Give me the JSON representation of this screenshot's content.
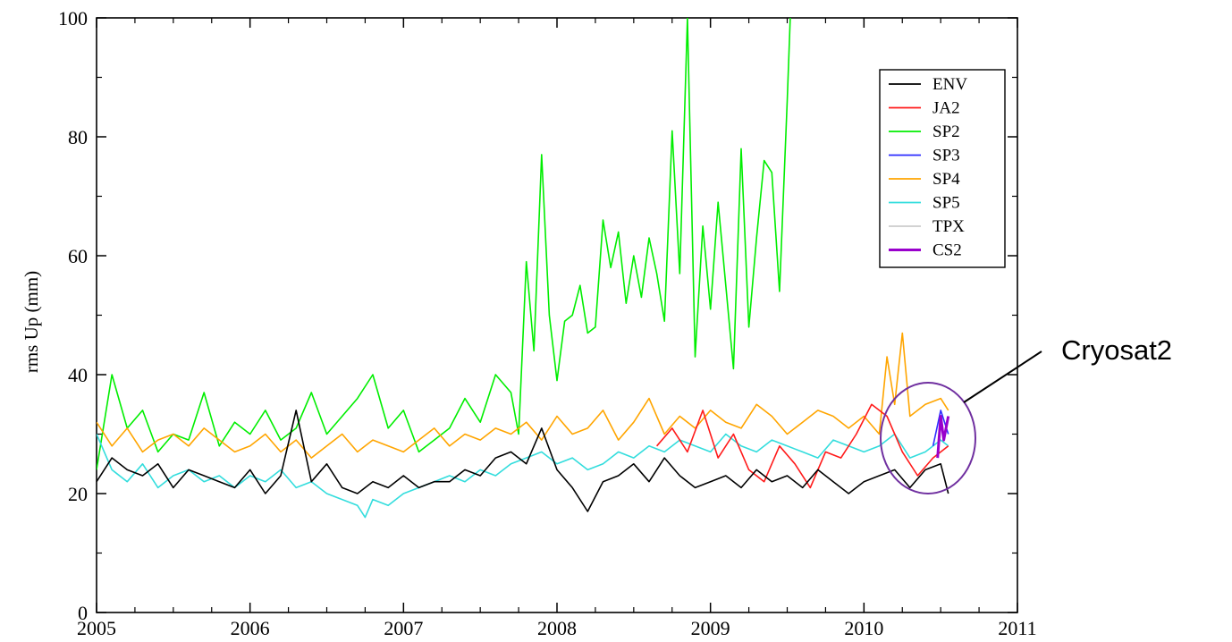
{
  "chart_data": {
    "type": "line",
    "title": "",
    "xlabel": "",
    "ylabel": "rms Up (mm)",
    "xlim": [
      2005,
      2011
    ],
    "ylim": [
      0,
      100
    ],
    "x_ticks": [
      "2005",
      "2006",
      "2007",
      "2008",
      "2009",
      "2010",
      "2011"
    ],
    "y_ticks": [
      "0",
      "20",
      "40",
      "60",
      "80",
      "100"
    ],
    "grid": false,
    "legend_position": "top-right",
    "annotation": {
      "text": "Cryosat2",
      "target": "CS2 values around mid-2010"
    },
    "series": [
      {
        "name": "ENV",
        "color": "#000000",
        "x": [
          2005.0,
          2005.1,
          2005.2,
          2005.3,
          2005.4,
          2005.5,
          2005.6,
          2005.7,
          2005.8,
          2005.9,
          2006.0,
          2006.1,
          2006.2,
          2006.3,
          2006.4,
          2006.5,
          2006.6,
          2006.7,
          2006.8,
          2006.9,
          2007.0,
          2007.1,
          2007.2,
          2007.3,
          2007.4,
          2007.5,
          2007.6,
          2007.7,
          2007.8,
          2007.9,
          2008.0,
          2008.1,
          2008.2,
          2008.3,
          2008.4,
          2008.5,
          2008.6,
          2008.7,
          2008.8,
          2008.9,
          2009.0,
          2009.1,
          2009.2,
          2009.3,
          2009.4,
          2009.5,
          2009.6,
          2009.7,
          2009.8,
          2009.9,
          2010.0,
          2010.1,
          2010.2,
          2010.3,
          2010.4,
          2010.5,
          2010.55
        ],
        "y": [
          22,
          26,
          24,
          23,
          25,
          21,
          24,
          23,
          22,
          21,
          24,
          20,
          23,
          34,
          22,
          25,
          21,
          20,
          22,
          21,
          23,
          21,
          22,
          22,
          24,
          23,
          26,
          27,
          25,
          31,
          24,
          21,
          17,
          22,
          23,
          25,
          22,
          26,
          23,
          21,
          22,
          23,
          21,
          24,
          22,
          23,
          21,
          24,
          22,
          20,
          22,
          23,
          24,
          21,
          24,
          25,
          20
        ]
      },
      {
        "name": "JA2",
        "color": "#ff1a1a",
        "x": [
          2008.65,
          2008.75,
          2008.85,
          2008.95,
          2009.05,
          2009.15,
          2009.25,
          2009.35,
          2009.45,
          2009.55,
          2009.65,
          2009.75,
          2009.85,
          2009.95,
          2010.05,
          2010.15,
          2010.25,
          2010.35,
          2010.45,
          2010.55
        ],
        "y": [
          28,
          31,
          27,
          34,
          26,
          30,
          24,
          22,
          28,
          25,
          21,
          27,
          26,
          30,
          35,
          33,
          27,
          23,
          26,
          28
        ]
      },
      {
        "name": "SP2",
        "color": "#00ee00",
        "x": [
          2005.0,
          2005.1,
          2005.2,
          2005.3,
          2005.4,
          2005.5,
          2005.6,
          2005.7,
          2005.8,
          2005.9,
          2006.0,
          2006.1,
          2006.2,
          2006.3,
          2006.4,
          2006.5,
          2006.6,
          2006.7,
          2006.8,
          2006.9,
          2007.0,
          2007.1,
          2007.2,
          2007.3,
          2007.4,
          2007.5,
          2007.6,
          2007.7,
          2007.75,
          2007.8,
          2007.85,
          2007.9,
          2007.95,
          2008.0,
          2008.05,
          2008.1,
          2008.15,
          2008.2,
          2008.25,
          2008.3,
          2008.35,
          2008.4,
          2008.45,
          2008.5,
          2008.55,
          2008.6,
          2008.65,
          2008.7,
          2008.75,
          2008.8,
          2008.85,
          2008.9,
          2008.95,
          2009.0,
          2009.05,
          2009.1,
          2009.15,
          2009.2,
          2009.25,
          2009.3,
          2009.35,
          2009.4,
          2009.45,
          2009.5,
          2009.52
        ],
        "y": [
          24,
          40,
          31,
          34,
          27,
          30,
          29,
          37,
          28,
          32,
          30,
          34,
          29,
          31,
          37,
          30,
          33,
          36,
          40,
          31,
          34,
          27,
          29,
          31,
          36,
          32,
          40,
          37,
          30,
          59,
          44,
          77,
          50,
          39,
          49,
          50,
          55,
          47,
          48,
          66,
          58,
          64,
          52,
          60,
          53,
          63,
          57,
          49,
          81,
          57,
          100,
          43,
          65,
          51,
          69,
          55,
          41,
          78,
          48,
          63,
          76,
          74,
          54,
          86,
          100
        ]
      },
      {
        "name": "SP3",
        "color": "#2e2eff",
        "x": [
          2010.45,
          2010.5,
          2010.55
        ],
        "y": [
          28,
          34,
          30
        ]
      },
      {
        "name": "SP4",
        "color": "#ffa500",
        "x": [
          2005.0,
          2005.1,
          2005.2,
          2005.3,
          2005.4,
          2005.5,
          2005.6,
          2005.7,
          2005.8,
          2005.9,
          2006.0,
          2006.1,
          2006.2,
          2006.3,
          2006.4,
          2006.5,
          2006.6,
          2006.7,
          2006.8,
          2006.9,
          2007.0,
          2007.1,
          2007.2,
          2007.3,
          2007.4,
          2007.5,
          2007.6,
          2007.7,
          2007.8,
          2007.9,
          2008.0,
          2008.1,
          2008.2,
          2008.3,
          2008.4,
          2008.5,
          2008.6,
          2008.7,
          2008.8,
          2008.9,
          2009.0,
          2009.1,
          2009.2,
          2009.3,
          2009.4,
          2009.5,
          2009.6,
          2009.7,
          2009.8,
          2009.9,
          2010.0,
          2010.1,
          2010.15,
          2010.2,
          2010.25,
          2010.3,
          2010.4,
          2010.5,
          2010.55
        ],
        "y": [
          32,
          28,
          31,
          27,
          29,
          30,
          28,
          31,
          29,
          27,
          28,
          30,
          27,
          29,
          26,
          28,
          30,
          27,
          29,
          28,
          27,
          29,
          31,
          28,
          30,
          29,
          31,
          30,
          32,
          29,
          33,
          30,
          31,
          34,
          29,
          32,
          36,
          30,
          33,
          31,
          34,
          32,
          31,
          35,
          33,
          30,
          32,
          34,
          33,
          31,
          33,
          30,
          43,
          35,
          47,
          33,
          35,
          36,
          34
        ]
      },
      {
        "name": "SP5",
        "color": "#33dddd",
        "x": [
          2005.0,
          2005.1,
          2005.2,
          2005.3,
          2005.4,
          2005.5,
          2005.6,
          2005.7,
          2005.8,
          2005.9,
          2006.0,
          2006.1,
          2006.2,
          2006.3,
          2006.4,
          2006.5,
          2006.6,
          2006.7,
          2006.75,
          2006.8,
          2006.9,
          2007.0,
          2007.1,
          2007.2,
          2007.3,
          2007.4,
          2007.5,
          2007.6,
          2007.7,
          2007.8,
          2007.9,
          2008.0,
          2008.1,
          2008.2,
          2008.3,
          2008.4,
          2008.5,
          2008.6,
          2008.7,
          2008.8,
          2008.9,
          2009.0,
          2009.1,
          2009.2,
          2009.3,
          2009.4,
          2009.5,
          2009.6,
          2009.7,
          2009.8,
          2009.9,
          2010.0,
          2010.1,
          2010.2,
          2010.3,
          2010.4,
          2010.5,
          2010.55
        ],
        "y": [
          30,
          24,
          22,
          25,
          21,
          23,
          24,
          22,
          23,
          21,
          23,
          22,
          24,
          21,
          22,
          20,
          19,
          18,
          16,
          19,
          18,
          20,
          21,
          22,
          23,
          22,
          24,
          23,
          25,
          26,
          27,
          25,
          26,
          24,
          25,
          27,
          26,
          28,
          27,
          29,
          28,
          27,
          30,
          28,
          27,
          29,
          28,
          27,
          26,
          29,
          28,
          27,
          28,
          30,
          26,
          27,
          29,
          28
        ]
      },
      {
        "name": "TPX",
        "color": "#cccccc",
        "x": [],
        "y": []
      },
      {
        "name": "CS2",
        "color": "#9900cc",
        "x": [
          2010.48,
          2010.5,
          2010.52,
          2010.55
        ],
        "y": [
          26,
          33,
          29,
          33
        ]
      }
    ]
  }
}
